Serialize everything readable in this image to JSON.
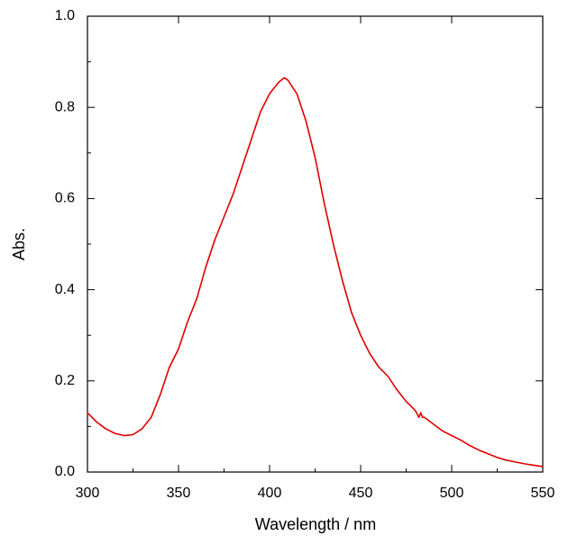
{
  "chart_data": {
    "type": "line",
    "xlabel": "Wavelength / nm",
    "ylabel": "Abs.",
    "x": [
      300,
      305,
      310,
      315,
      320,
      325,
      330,
      335,
      340,
      345,
      350,
      355,
      360,
      365,
      370,
      375,
      380,
      385,
      390,
      395,
      400,
      405,
      408,
      410,
      415,
      420,
      425,
      430,
      435,
      440,
      445,
      450,
      455,
      460,
      465,
      470,
      475,
      480,
      482,
      483,
      484,
      485,
      490,
      495,
      500,
      505,
      510,
      515,
      520,
      525,
      530,
      535,
      540,
      545,
      550
    ],
    "series": [
      {
        "color": "#e00000",
        "values": [
          0.13,
          0.11,
          0.095,
          0.085,
          0.08,
          0.082,
          0.095,
          0.12,
          0.17,
          0.23,
          0.27,
          0.33,
          0.38,
          0.45,
          0.51,
          0.56,
          0.61,
          0.67,
          0.73,
          0.79,
          0.83,
          0.855,
          0.865,
          0.86,
          0.83,
          0.77,
          0.69,
          0.59,
          0.5,
          0.42,
          0.35,
          0.3,
          0.26,
          0.23,
          0.21,
          0.18,
          0.155,
          0.135,
          0.12,
          0.13,
          0.12,
          0.12,
          0.105,
          0.09,
          0.08,
          0.07,
          0.058,
          0.048,
          0.04,
          0.032,
          0.026,
          0.022,
          0.018,
          0.015,
          0.012
        ]
      }
    ],
    "xlim": [
      300,
      550
    ],
    "ylim": [
      0,
      1
    ],
    "xticks": [
      300,
      350,
      400,
      450,
      500,
      550
    ],
    "yticks": [
      {
        "value": 0,
        "label": "0.0"
      },
      0.2,
      0.4,
      0.6,
      0.8,
      {
        "value": 1,
        "label": "1.0"
      }
    ],
    "xminorticks": [
      325,
      375,
      425,
      475,
      525
    ],
    "yminorticks": [
      0.1,
      0.3,
      0.5,
      0.7,
      0.9
    ]
  }
}
